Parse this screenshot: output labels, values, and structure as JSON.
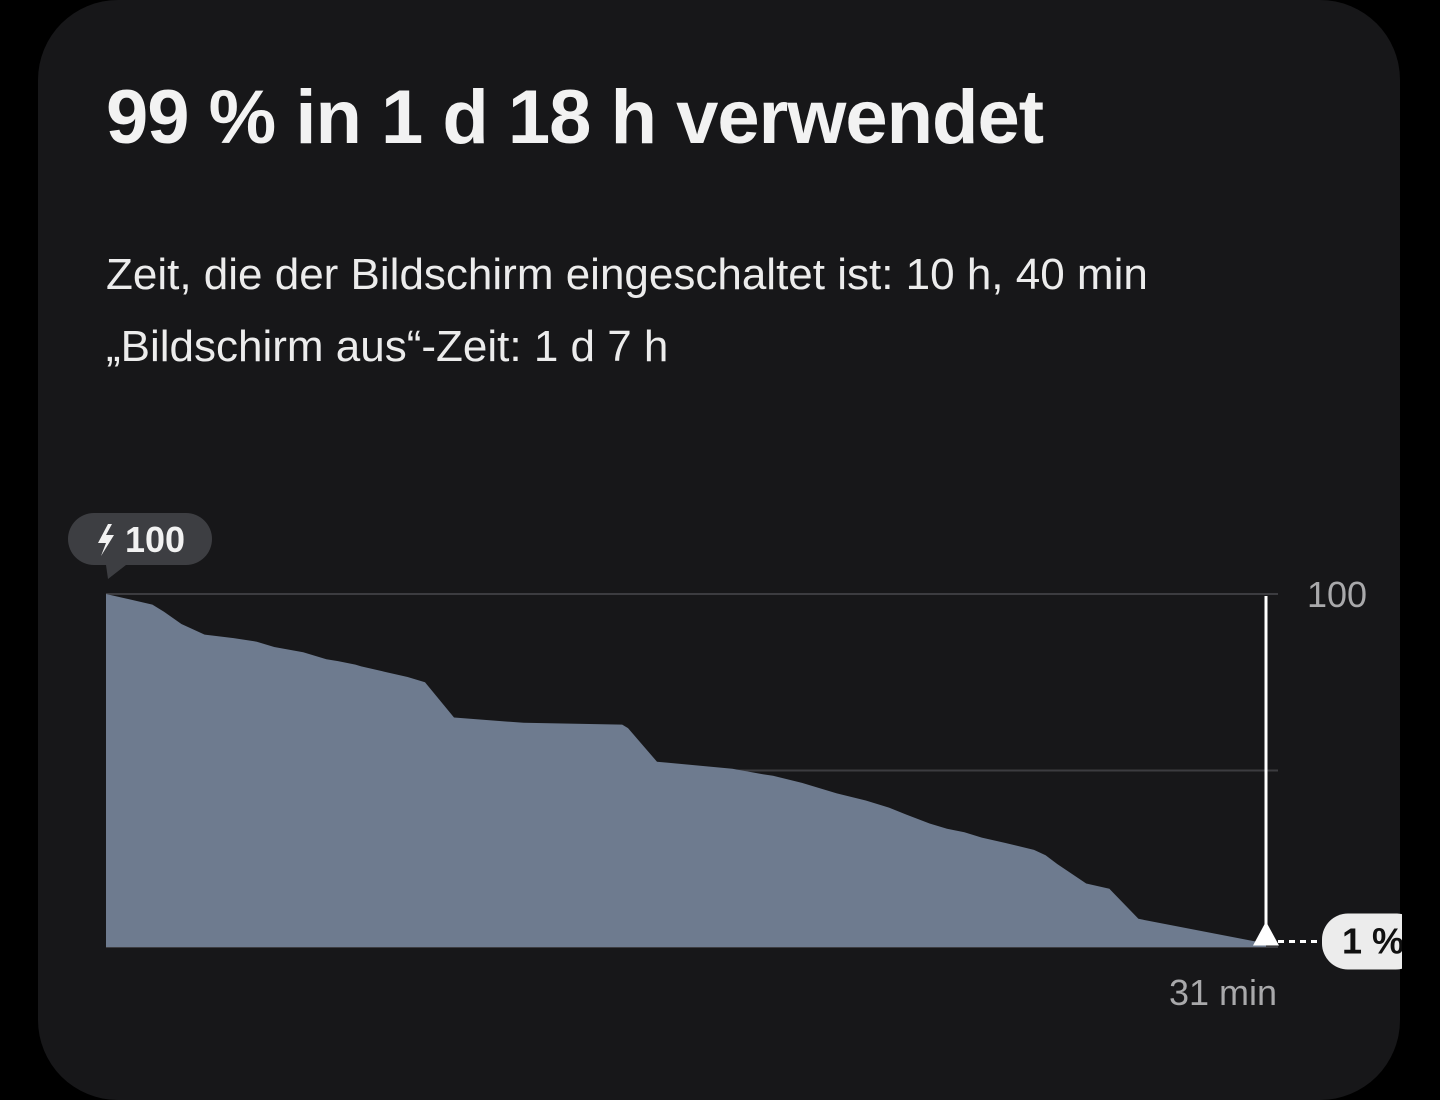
{
  "header": {
    "title": "99 % in 1 d 18 h verwendet",
    "screen_on_line": "Zeit, die der Bildschirm eingeschaltet ist: 10 h, 40 min",
    "screen_off_line": "„Bildschirm aus“-Zeit: 1 d 7 h"
  },
  "chart_data": {
    "type": "area",
    "title": "",
    "xlabel": "",
    "ylabel": "",
    "y_unit": "%",
    "ylim": [
      0,
      100
    ],
    "y_ticks": [
      100,
      50,
      0
    ],
    "y_tick_labels": [
      "100",
      ""
    ],
    "start_badge_icon": "lightning-bolt-icon",
    "start_badge_label": "100",
    "current_value_label": "1 %",
    "end_time_label": "31 min",
    "x": [
      0,
      2,
      4,
      5,
      6.5,
      8.5,
      11,
      13,
      14.5,
      17,
      19,
      20,
      21.5,
      22,
      24,
      26,
      27.5,
      30,
      36,
      44.5,
      45,
      47.5,
      54,
      56.5,
      57.5,
      60,
      61.5,
      63,
      65.5,
      67.5,
      69,
      71,
      72.5,
      74,
      75.5,
      77.5,
      80,
      81,
      82,
      84.5,
      86.5,
      89,
      100
    ],
    "values": [
      100,
      98.5,
      97,
      95,
      91.5,
      88.5,
      87.5,
      86.5,
      85,
      83.5,
      81.5,
      81,
      80,
      79.5,
      78,
      76.5,
      75,
      65,
      63.5,
      63,
      62,
      52.5,
      50.5,
      49,
      48.5,
      46.5,
      45,
      43.5,
      41.5,
      39.5,
      37.5,
      35,
      33.5,
      32.5,
      31,
      29.5,
      27.5,
      26,
      23.5,
      18,
      16.5,
      8,
      1
    ],
    "fill_color": "#6e7b8f",
    "grid": true,
    "grid_color": "#3c3c40"
  }
}
